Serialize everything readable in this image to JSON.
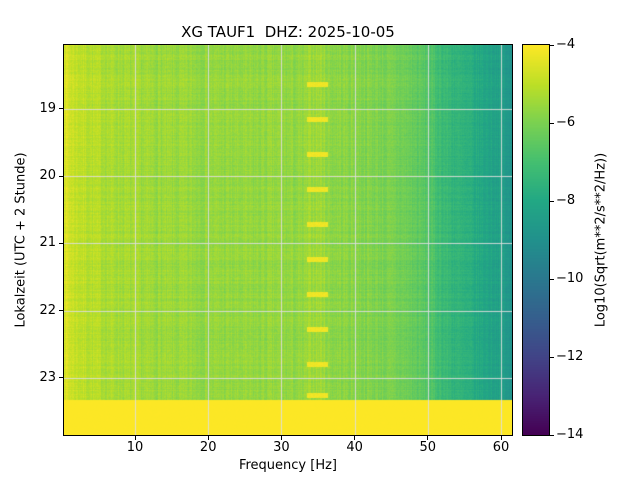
{
  "chart_data": {
    "type": "heatmap",
    "title": "XG TAUF1  DHZ: 2025-10-05",
    "xlabel": "Frequency [Hz]",
    "ylabel": "Lokalzeit (UTC + 2 Stunde)",
    "x_range": [
      0.3,
      61.5
    ],
    "x_ticks": [
      10,
      20,
      30,
      40,
      50,
      60
    ],
    "y_range": [
      18.05,
      23.85
    ],
    "y_ticks": [
      19,
      20,
      21,
      22,
      23
    ],
    "y_direction": "down",
    "grid": true,
    "grid_color": "rgba(222,222,222,0.9)",
    "colorbar": {
      "label": "Log10(Sqrt(m**2/s**2/Hz))",
      "ticks": [
        -4,
        -6,
        -8,
        -10,
        -12,
        -14
      ],
      "range": [
        -14,
        -4
      ],
      "colormap": "viridis"
    },
    "colormap_stops": [
      [
        0.0,
        "#440154"
      ],
      [
        0.1,
        "#482475"
      ],
      [
        0.2,
        "#414487"
      ],
      [
        0.3,
        "#355f8d"
      ],
      [
        0.4,
        "#2a788e"
      ],
      [
        0.5,
        "#21918c"
      ],
      [
        0.6,
        "#22a884"
      ],
      [
        0.7,
        "#44bf70"
      ],
      [
        0.8,
        "#7ad151"
      ],
      [
        0.9,
        "#bddf26"
      ],
      [
        1.0,
        "#fde725"
      ]
    ],
    "spectral_profile": {
      "freq": [
        0.3,
        1,
        2,
        4,
        7,
        10,
        15,
        20,
        25,
        30,
        33,
        34,
        35.5,
        36.5,
        40,
        44,
        47,
        50,
        52,
        55,
        58,
        60,
        61,
        61.5
      ],
      "value": [
        -4.4,
        -4.7,
        -4.9,
        -5.1,
        -5.3,
        -5.45,
        -5.55,
        -5.6,
        -5.65,
        -5.65,
        -5.7,
        -5.45,
        -5.45,
        -5.7,
        -5.8,
        -6.0,
        -6.2,
        -6.7,
        -7.2,
        -7.7,
        -8.1,
        -8.3,
        -8.8,
        -9.0
      ]
    },
    "hotspots": {
      "freq_center": 34.8,
      "freq_halfwidth": 1.3,
      "time_halfwidth": 0.035,
      "value": -4.2,
      "times": [
        18.63,
        19.15,
        19.67,
        20.19,
        20.71,
        21.23,
        21.75,
        22.27,
        22.79,
        23.25
      ]
    },
    "bottom_band": {
      "time_start": 23.33,
      "value": -4.0
    },
    "noise": {
      "seed": 7,
      "column_amp": 0.5,
      "row_amp": 0.3,
      "pixel_amp": 0.35
    }
  }
}
